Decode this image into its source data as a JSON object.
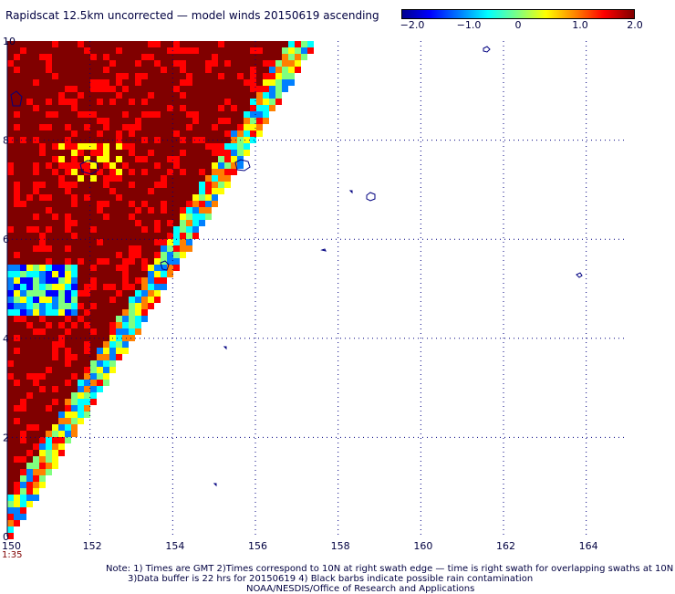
{
  "title": "Rapidscat 12.5km uncorrected — model winds 20150619 ascending",
  "colorbar": {
    "ticks": [
      "−2.0",
      "−1.0",
      "0",
      "1.0",
      "2.0"
    ],
    "colors": [
      "#00008f",
      "#0000ff",
      "#0080ff",
      "#00ffff",
      "#80ff80",
      "#ffff00",
      "#ff8000",
      "#ff0000",
      "#800000"
    ]
  },
  "x_axis": {
    "ticks": [
      "150",
      "152",
      "154",
      "156",
      "158",
      "160",
      "162",
      "164"
    ]
  },
  "y_axis": {
    "ticks": [
      "0",
      "2",
      "4",
      "6",
      "8",
      "10"
    ]
  },
  "time_label": "1:35",
  "notes": [
    "Note: 1) Times are GMT 2)Times correspond to 10N at right swath edge — time is right swath for overlapping swaths at 10N",
    "3)Data buffer is 22 hrs for 20150619 4) Black barbs indicate possible rain contamination",
    "NOAA/NESDIS/Office of Research and Applications"
  ]
}
